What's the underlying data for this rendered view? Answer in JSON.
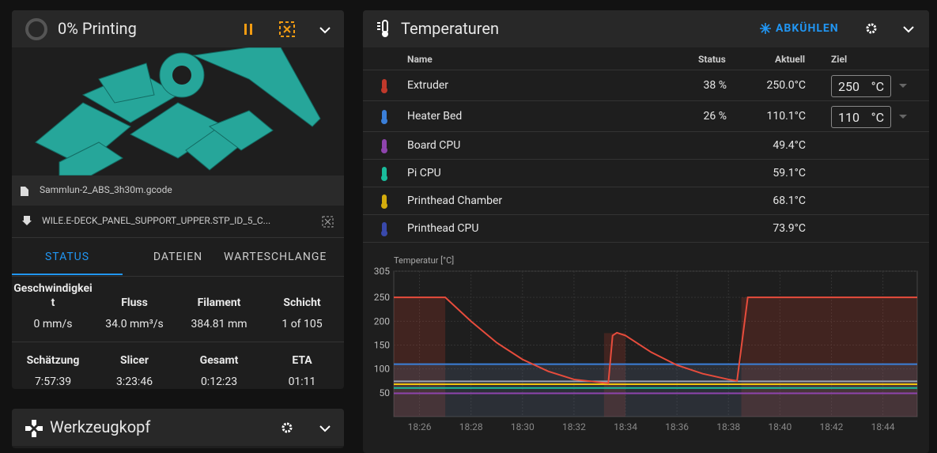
{
  "print_panel": {
    "title": "0% Printing",
    "file": "Sammlun-2_ABS_3h30m.gcode",
    "object": "WILE.E-DECK_PANEL_SUPPORT_UPPER.STP_ID_5_C...",
    "tabs": [
      "STATUS",
      "DATEIEN",
      "WARTESCHLANGE"
    ],
    "stats": [
      {
        "label": "Geschwindigkeit",
        "value": "0 mm/s"
      },
      {
        "label": "Fluss",
        "value": "34.0 mm³/s"
      },
      {
        "label": "Filament",
        "value": "384.81 mm"
      },
      {
        "label": "Schicht",
        "value": "1 of 105"
      },
      {
        "label": "Schätzung",
        "value": "7:57:39"
      },
      {
        "label": "Slicer",
        "value": "3:23:46"
      },
      {
        "label": "Gesamt",
        "value": "0:12:23"
      },
      {
        "label": "ETA",
        "value": "01:11"
      }
    ]
  },
  "toolhead_panel": {
    "title": "Werkzeugkopf"
  },
  "temperature_panel": {
    "title": "Temperaturen",
    "cool_button": "ABKÜHLEN",
    "columns": [
      "Name",
      "Status",
      "Aktuell",
      "Ziel"
    ],
    "rows": [
      {
        "name": "Extruder",
        "status": "38 %",
        "current": "250.0°C",
        "target": "250",
        "unit": "°C"
      },
      {
        "name": "Heater Bed",
        "status": "26 %",
        "current": "110.1°C",
        "target": "110",
        "unit": "°C"
      },
      {
        "name": "Board CPU",
        "current": "49.4°C"
      },
      {
        "name": "Pi CPU",
        "current": "59.1°C"
      },
      {
        "name": "Printhead Chamber",
        "current": "68.1°C"
      },
      {
        "name": "Printhead CPU",
        "current": "73.9°C"
      }
    ]
  },
  "chart_data": {
    "type": "line",
    "y_label": "Temperatur [°C]",
    "ylim": [
      0,
      305
    ],
    "yticks": [
      50,
      100,
      150,
      200,
      250,
      305
    ],
    "xlim": [
      "18:25",
      "18:45:20"
    ],
    "xticks": [
      "18:26",
      "18:28",
      "18:30",
      "18:32",
      "18:34",
      "18:36",
      "18:38",
      "18:40",
      "18:42",
      "18:44"
    ],
    "grid": true,
    "series": [
      {
        "color": "#c0392b",
        "area": true,
        "x": [
          "18:25",
          "18:27",
          "18:27",
          "18:33:10",
          "18:33:10",
          "18:34",
          "18:34",
          "18:38:30",
          "18:38:30",
          "18:45:20"
        ],
        "values": [
          250,
          250,
          0,
          0,
          175,
          175,
          0,
          0,
          250,
          250
        ]
      },
      {
        "color": "#5b6c8c",
        "area": true,
        "x": [
          "18:25",
          "18:45:20"
        ],
        "values": [
          110,
          110
        ]
      },
      {
        "name": "Heater Bed",
        "color": "#3b7fd9",
        "x": [
          "18:25",
          "18:45:20"
        ],
        "values": [
          110,
          110
        ]
      },
      {
        "name": "Board CPU",
        "color": "#8e44ad",
        "x": [
          "18:25",
          "18:45:20"
        ],
        "values": [
          49,
          49
        ]
      },
      {
        "name": "Pi CPU",
        "color": "#1abc9c",
        "x": [
          "18:25",
          "18:45:20"
        ],
        "values": [
          60,
          60
        ]
      },
      {
        "name": "Printhead Chamber",
        "color": "#f1c40f",
        "x": [
          "18:25",
          "18:45:20"
        ],
        "values": [
          68,
          68
        ]
      },
      {
        "name": "Printhead CPU",
        "color": "#9aa3b5",
        "x": [
          "18:25",
          "18:45:20"
        ],
        "values": [
          74,
          74
        ]
      },
      {
        "name": "Extruder",
        "color": "#e74c3c",
        "x": [
          "18:25",
          "18:27",
          "18:28",
          "18:29",
          "18:30",
          "18:31",
          "18:32",
          "18:33:20",
          "18:33:30",
          "18:33:40",
          "18:34",
          "18:35",
          "18:36",
          "18:37",
          "18:38",
          "18:38:20",
          "18:38:45",
          "18:39",
          "18:45:20"
        ],
        "values": [
          250,
          250,
          200,
          155,
          120,
          95,
          78,
          70,
          170,
          176,
          170,
          135,
          108,
          90,
          78,
          75,
          250,
          250,
          250
        ]
      }
    ]
  }
}
